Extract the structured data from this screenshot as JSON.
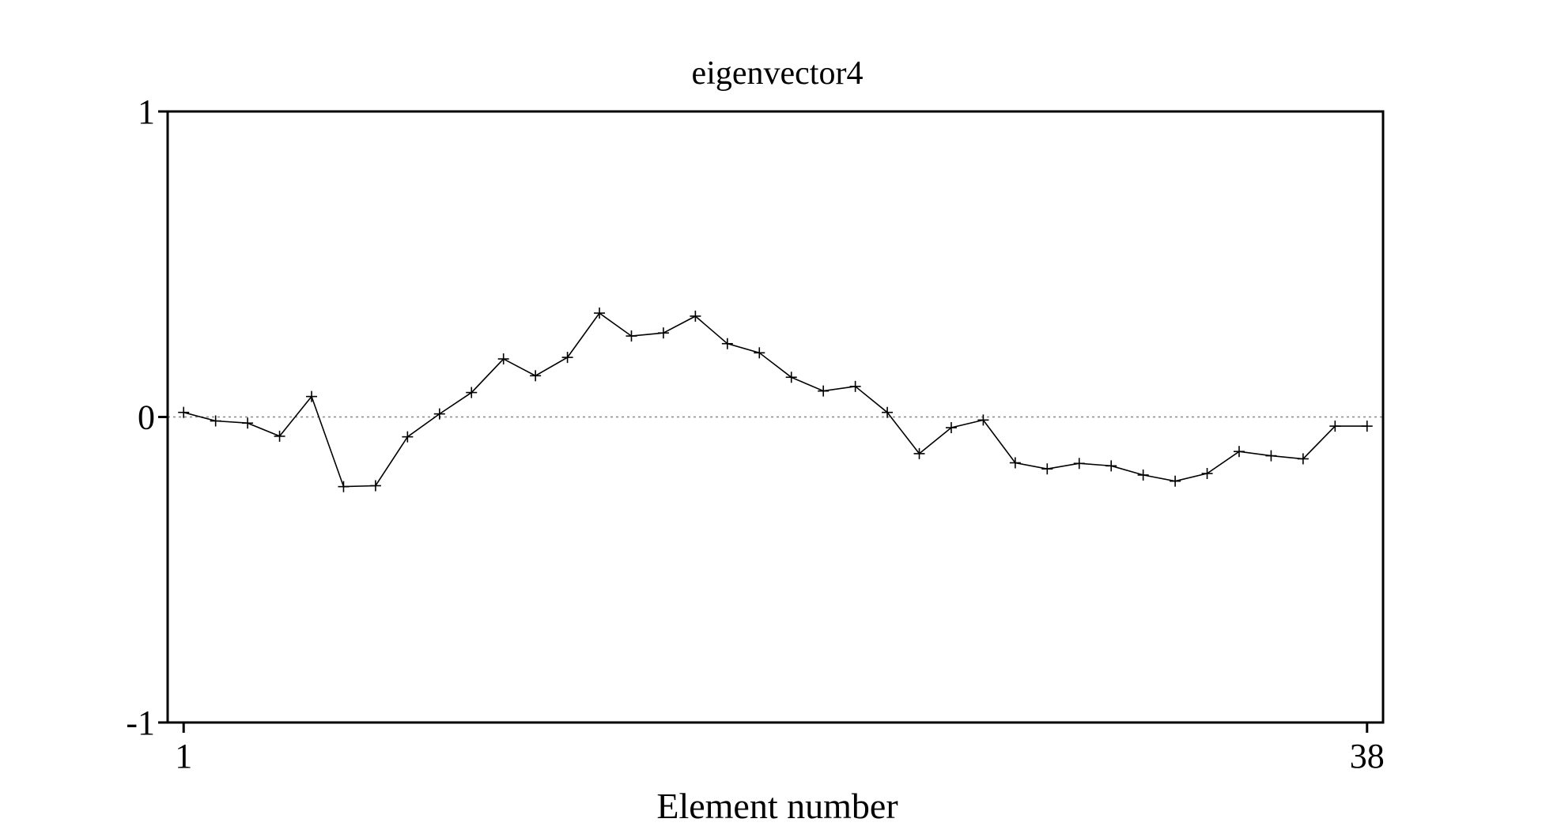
{
  "chart_data": {
    "type": "line",
    "title": "eigenvector4",
    "xlabel": "Element number",
    "ylabel": "",
    "ylim": [
      -1,
      1
    ],
    "yticks": [
      -1,
      0,
      1
    ],
    "xlim": [
      0.5,
      38.5
    ],
    "xticks": [
      1,
      38
    ],
    "reference_line": 0,
    "marker": "plus",
    "line_color": "#000000",
    "x": [
      1,
      2,
      3,
      4,
      5,
      6,
      7,
      8,
      9,
      10,
      11,
      12,
      13,
      14,
      15,
      16,
      17,
      18,
      19,
      20,
      21,
      22,
      23,
      24,
      25,
      26,
      27,
      28,
      29,
      30,
      31,
      32,
      33,
      34,
      35,
      36,
      37,
      38
    ],
    "y": [
      0.015,
      -0.013,
      -0.02,
      -0.063,
      0.067,
      -0.228,
      -0.225,
      -0.065,
      0.01,
      0.08,
      0.19,
      0.135,
      0.195,
      0.34,
      0.265,
      0.275,
      0.33,
      0.24,
      0.21,
      0.13,
      0.085,
      0.1,
      0.015,
      -0.12,
      -0.035,
      -0.01,
      -0.15,
      -0.17,
      -0.152,
      -0.16,
      -0.19,
      -0.21,
      -0.185,
      -0.113,
      -0.127,
      -0.137,
      -0.03,
      -0.03
    ]
  }
}
